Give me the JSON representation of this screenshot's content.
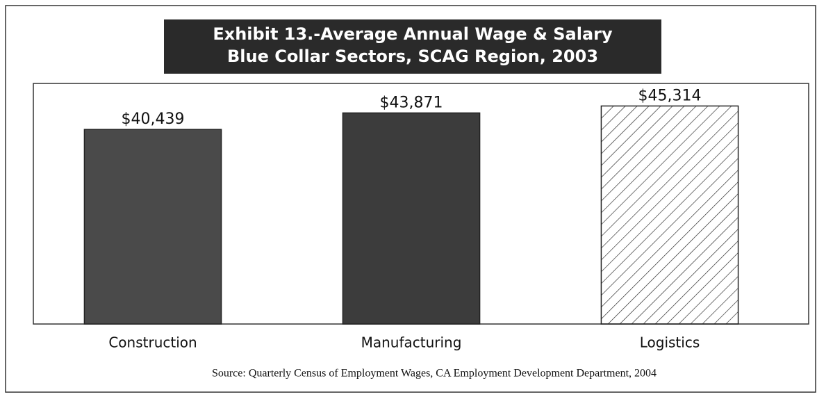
{
  "chart_data": {
    "type": "bar",
    "title_lines": [
      "Exhibit 13.-Average Annual Wage & Salary",
      "Blue Collar Sectors, SCAG Region, 2003"
    ],
    "categories": [
      "Construction",
      "Manufacturing",
      "Logistics"
    ],
    "values": [
      40439,
      43871,
      45314
    ],
    "value_labels": [
      "$40,439",
      "$43,871",
      "$45,314"
    ],
    "colors": [
      "#4a4a4a",
      "#3c3c3c",
      "#ffffff"
    ],
    "hatch": [
      false,
      false,
      true
    ],
    "ylim": [
      0,
      50000
    ],
    "source": "Source:  Quarterly Census of Employment Wages, CA Employment Development Department, 2004"
  }
}
